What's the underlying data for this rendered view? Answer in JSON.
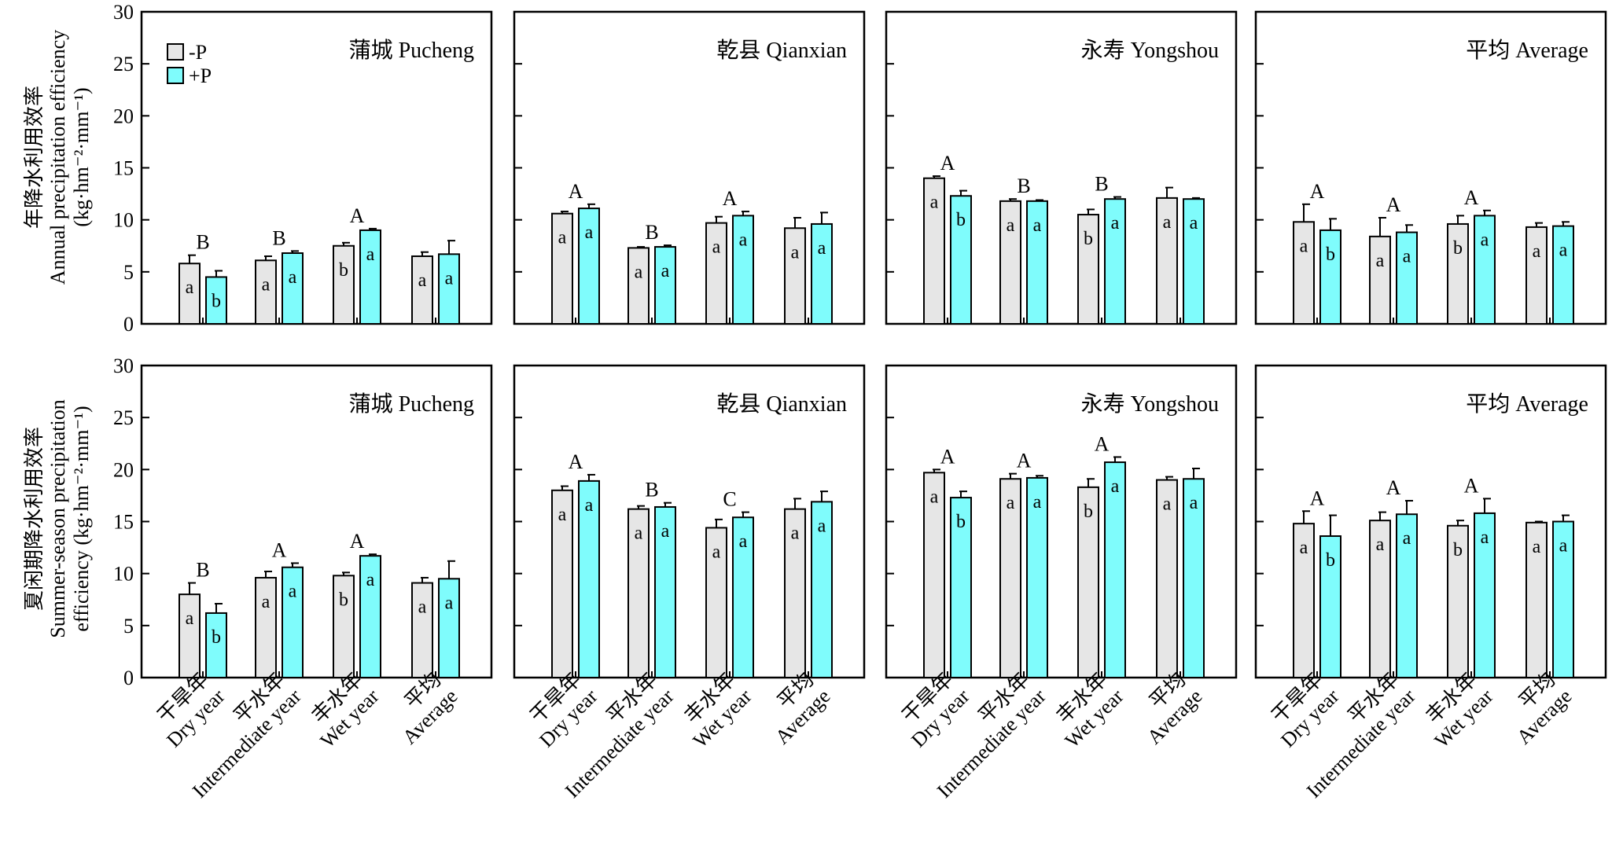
{
  "figure": {
    "legend": [
      {
        "key": "minusP",
        "label": "-P",
        "color": "#e6e6e6"
      },
      {
        "key": "plusP",
        "label": "+P",
        "color": "#7ffcfc"
      }
    ],
    "x_tick_labels": [
      {
        "zh": "干旱年",
        "en": "Dry year"
      },
      {
        "zh": "平水年",
        "en": "Intermediate year"
      },
      {
        "zh": "丰水年",
        "en": "Wet year"
      },
      {
        "zh": "平均",
        "en": "Average"
      }
    ],
    "y_ticks": [
      "0",
      "5",
      "10",
      "15",
      "20",
      "25",
      "30"
    ],
    "row_labels": [
      {
        "zh": "年降水利用效率",
        "en": "Annual precipitation efficiency",
        "unit": "(kg·hm⁻²·mm⁻¹)"
      },
      {
        "zh": "夏闲期降水利用效率",
        "en": "Summer-season precipitation",
        "unit": "efficiency (kg·hm⁻²·mm⁻¹)"
      }
    ]
  },
  "chart_data": [
    {
      "type": "bar",
      "row": "annual",
      "panel": "蒲城 Pucheng",
      "categories": [
        "干旱年 Dry year",
        "平水年 Intermediate year",
        "丰水年 Wet year",
        "平均 Average"
      ],
      "ylim": [
        0,
        30
      ],
      "series": [
        {
          "name": "-P",
          "values": [
            5.8,
            6.1,
            7.5,
            6.5
          ],
          "errors": [
            0.8,
            0.4,
            0.3,
            0.4
          ],
          "letters": [
            "a",
            "a",
            "b",
            "a"
          ]
        },
        {
          "name": "+P",
          "values": [
            4.5,
            6.8,
            9.0,
            6.7
          ],
          "errors": [
            0.6,
            0.2,
            0.15,
            1.3
          ],
          "letters": [
            "b",
            "a",
            "a",
            "a"
          ]
        }
      ],
      "group_letters": [
        "B",
        "B",
        "A",
        ""
      ]
    },
    {
      "type": "bar",
      "row": "annual",
      "panel": "乾县 Qianxian",
      "categories": [
        "干旱年 Dry year",
        "平水年 Intermediate year",
        "丰水年 Wet year",
        "平均 Average"
      ],
      "ylim": [
        0,
        30
      ],
      "series": [
        {
          "name": "-P",
          "values": [
            10.6,
            7.3,
            9.7,
            9.2
          ],
          "errors": [
            0.2,
            0.1,
            0.6,
            1.0
          ],
          "letters": [
            "a",
            "a",
            "a",
            "a"
          ]
        },
        {
          "name": "+P",
          "values": [
            11.1,
            7.4,
            10.4,
            9.6
          ],
          "errors": [
            0.4,
            0.15,
            0.4,
            1.1
          ],
          "letters": [
            "a",
            "a",
            "a",
            "a"
          ]
        }
      ],
      "group_letters": [
        "A",
        "B",
        "A",
        ""
      ]
    },
    {
      "type": "bar",
      "row": "annual",
      "panel": "永寿 Yongshou",
      "categories": [
        "干旱年 Dry year",
        "平水年 Intermediate year",
        "丰水年 Wet year",
        "平均 Average"
      ],
      "ylim": [
        0,
        30
      ],
      "series": [
        {
          "name": "-P",
          "values": [
            14.0,
            11.8,
            10.5,
            12.1
          ],
          "errors": [
            0.2,
            0.2,
            0.5,
            1.0
          ],
          "letters": [
            "a",
            "a",
            "b",
            "a"
          ]
        },
        {
          "name": "+P",
          "values": [
            12.3,
            11.8,
            12.0,
            12.0
          ],
          "errors": [
            0.5,
            0.1,
            0.2,
            0.1
          ],
          "letters": [
            "b",
            "a",
            "a",
            "a"
          ]
        }
      ],
      "group_letters": [
        "A",
        "B",
        "B",
        ""
      ]
    },
    {
      "type": "bar",
      "row": "annual",
      "panel": "平均 Average",
      "categories": [
        "干旱年 Dry year",
        "平水年 Intermediate year",
        "丰水年 Wet year",
        "平均 Average"
      ],
      "ylim": [
        0,
        30
      ],
      "series": [
        {
          "name": "-P",
          "values": [
            9.8,
            8.4,
            9.6,
            9.3
          ],
          "errors": [
            1.7,
            1.8,
            0.8,
            0.4
          ],
          "letters": [
            "a",
            "a",
            "b",
            "a"
          ]
        },
        {
          "name": "+P",
          "values": [
            9.0,
            8.8,
            10.4,
            9.4
          ],
          "errors": [
            1.1,
            0.7,
            0.5,
            0.4
          ],
          "letters": [
            "b",
            "a",
            "a",
            "a"
          ]
        }
      ],
      "group_letters": [
        "A",
        "A",
        "A",
        ""
      ]
    },
    {
      "type": "bar",
      "row": "summer",
      "panel": "蒲城 Pucheng",
      "categories": [
        "干旱年 Dry year",
        "平水年 Intermediate year",
        "丰水年 Wet year",
        "平均 Average"
      ],
      "ylim": [
        0,
        30
      ],
      "series": [
        {
          "name": "-P",
          "values": [
            8.0,
            9.6,
            9.8,
            9.1
          ],
          "errors": [
            1.1,
            0.6,
            0.3,
            0.5
          ],
          "letters": [
            "a",
            "a",
            "b",
            "a"
          ]
        },
        {
          "name": "+P",
          "values": [
            6.2,
            10.6,
            11.7,
            9.5
          ],
          "errors": [
            0.9,
            0.4,
            0.15,
            1.7
          ],
          "letters": [
            "b",
            "a",
            "a",
            "a"
          ]
        }
      ],
      "group_letters": [
        "B",
        "A",
        "A",
        ""
      ]
    },
    {
      "type": "bar",
      "row": "summer",
      "panel": "乾县 Qianxian",
      "categories": [
        "干旱年 Dry year",
        "平水年 Intermediate year",
        "丰水年 Wet year",
        "平均 Average"
      ],
      "ylim": [
        0,
        30
      ],
      "series": [
        {
          "name": "-P",
          "values": [
            18.0,
            16.2,
            14.4,
            16.2
          ],
          "errors": [
            0.4,
            0.3,
            0.8,
            1.0
          ],
          "letters": [
            "a",
            "a",
            "a",
            "a"
          ]
        },
        {
          "name": "+P",
          "values": [
            18.9,
            16.4,
            15.4,
            16.9
          ],
          "errors": [
            0.6,
            0.4,
            0.5,
            1.0
          ],
          "letters": [
            "a",
            "a",
            "a",
            "a"
          ]
        }
      ],
      "group_letters": [
        "A",
        "B",
        "C",
        ""
      ]
    },
    {
      "type": "bar",
      "row": "summer",
      "panel": "永寿 Yongshou",
      "categories": [
        "干旱年 Dry year",
        "平水年 Intermediate year",
        "丰水年 Wet year",
        "平均 Average"
      ],
      "ylim": [
        0,
        30
      ],
      "series": [
        {
          "name": "-P",
          "values": [
            19.7,
            19.1,
            18.3,
            19.0
          ],
          "errors": [
            0.3,
            0.5,
            0.8,
            0.3
          ],
          "letters": [
            "a",
            "a",
            "b",
            "a"
          ]
        },
        {
          "name": "+P",
          "values": [
            17.3,
            19.2,
            20.7,
            19.1
          ],
          "errors": [
            0.6,
            0.2,
            0.5,
            1.0
          ],
          "letters": [
            "b",
            "a",
            "a",
            "a"
          ]
        }
      ],
      "group_letters": [
        "A",
        "A",
        "A",
        ""
      ]
    },
    {
      "type": "bar",
      "row": "summer",
      "panel": "平均 Average",
      "categories": [
        "干旱年 Dry year",
        "平水年 Intermediate year",
        "丰水年 Wet year",
        "平均 Average"
      ],
      "ylim": [
        0,
        30
      ],
      "series": [
        {
          "name": "-P",
          "values": [
            14.8,
            15.1,
            14.6,
            14.9
          ],
          "errors": [
            1.2,
            0.8,
            0.5,
            0.1
          ],
          "letters": [
            "a",
            "a",
            "b",
            "a"
          ]
        },
        {
          "name": "+P",
          "values": [
            13.6,
            15.7,
            15.8,
            15.0
          ],
          "errors": [
            2.0,
            1.3,
            1.4,
            0.6
          ],
          "letters": [
            "b",
            "a",
            "a",
            "a"
          ]
        }
      ],
      "group_letters": [
        "A",
        "A",
        "A",
        ""
      ]
    }
  ]
}
